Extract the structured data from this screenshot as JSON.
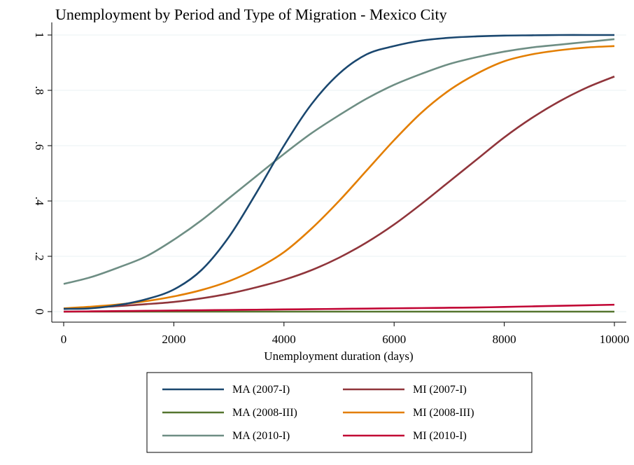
{
  "chart_data": {
    "type": "line",
    "title": "Unemployment by Period and Type of Migration - Mexico City",
    "xlabel": "Unemployment duration (days)",
    "ylabel": "",
    "xlim": [
      0,
      10000
    ],
    "ylim": [
      0,
      1
    ],
    "x_ticks": [
      0,
      2000,
      4000,
      6000,
      8000,
      10000
    ],
    "x_tick_labels": [
      "0",
      "2000",
      "4000",
      "6000",
      "8000",
      "10000"
    ],
    "y_ticks": [
      0,
      0.2,
      0.4,
      0.6,
      0.8,
      1
    ],
    "y_tick_labels": [
      "0",
      ".2",
      ".4",
      ".6",
      ".8",
      "1"
    ],
    "grid": true,
    "legend_position": "bottom",
    "x": [
      0,
      500,
      1000,
      1500,
      2000,
      2500,
      3000,
      3500,
      4000,
      4500,
      5000,
      5500,
      6000,
      6500,
      7000,
      7500,
      8000,
      8500,
      9000,
      9500,
      10000
    ],
    "series": [
      {
        "name": "MA (2007-I)",
        "color": "#1a476f",
        "values": [
          0.01,
          0.012,
          0.024,
          0.045,
          0.08,
          0.15,
          0.27,
          0.43,
          0.6,
          0.75,
          0.86,
          0.93,
          0.96,
          0.98,
          0.99,
          0.995,
          0.998,
          0.999,
          1.0,
          1.0,
          1.0
        ]
      },
      {
        "name": "MI (2007-I)",
        "color": "#90353b",
        "values": [
          0.01,
          0.015,
          0.02,
          0.027,
          0.035,
          0.048,
          0.065,
          0.088,
          0.115,
          0.15,
          0.195,
          0.25,
          0.315,
          0.39,
          0.47,
          0.55,
          0.63,
          0.7,
          0.76,
          0.81,
          0.85
        ]
      },
      {
        "name": "MA (2008-III)",
        "color": "#55752f",
        "values": [
          0.0,
          0.0,
          0.0,
          0.0,
          0.0,
          0.0,
          0.0,
          0.0,
          0.0,
          0.0,
          0.0,
          0.0,
          0.0,
          0.0,
          0.0,
          0.0,
          0.0,
          0.0,
          0.0,
          0.0,
          0.0
        ]
      },
      {
        "name": "MI (2008-III)",
        "color": "#e37e00",
        "values": [
          0.012,
          0.018,
          0.026,
          0.038,
          0.055,
          0.078,
          0.11,
          0.155,
          0.215,
          0.3,
          0.4,
          0.51,
          0.62,
          0.72,
          0.8,
          0.86,
          0.905,
          0.93,
          0.945,
          0.955,
          0.96
        ]
      },
      {
        "name": "MA (2010-I)",
        "color": "#6e8e84",
        "values": [
          0.1,
          0.125,
          0.16,
          0.2,
          0.26,
          0.33,
          0.41,
          0.49,
          0.57,
          0.645,
          0.71,
          0.77,
          0.82,
          0.86,
          0.895,
          0.92,
          0.94,
          0.955,
          0.965,
          0.975,
          0.985
        ]
      },
      {
        "name": "MI (2010-I)",
        "color": "#c10534",
        "values": [
          0.0,
          0.001,
          0.002,
          0.003,
          0.004,
          0.005,
          0.006,
          0.007,
          0.008,
          0.009,
          0.01,
          0.011,
          0.012,
          0.013,
          0.014,
          0.015,
          0.017,
          0.019,
          0.021,
          0.023,
          0.025
        ]
      }
    ],
    "legend_order": [
      "MA (2007-I)",
      "MI (2007-I)",
      "MA (2008-III)",
      "MI (2008-III)",
      "MA (2010-I)",
      "MI (2010-I)"
    ]
  }
}
